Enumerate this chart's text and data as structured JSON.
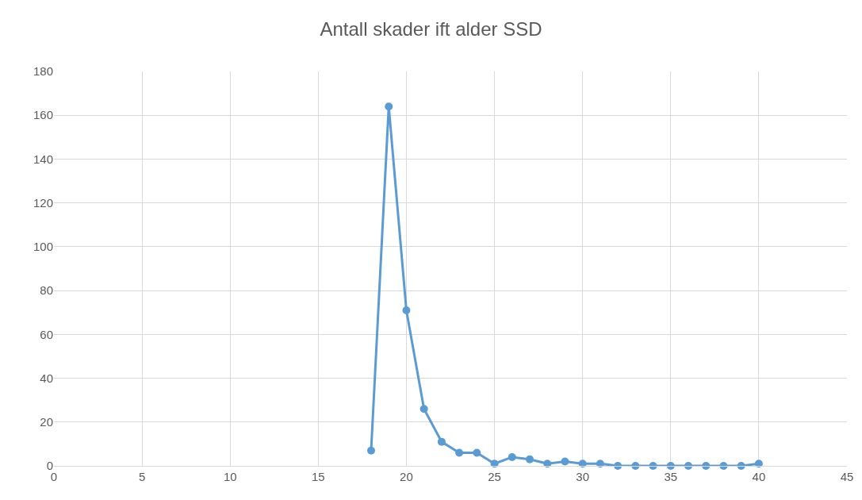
{
  "chart_data": {
    "type": "line",
    "title": "Antall skader ift alder SSD",
    "x": [
      18,
      19,
      20,
      21,
      22,
      23,
      24,
      25,
      26,
      27,
      28,
      29,
      30,
      31,
      32,
      33,
      34,
      35,
      36,
      37,
      38,
      39,
      40
    ],
    "series": [
      {
        "color": "#5b9bd5",
        "values": [
          7,
          164,
          71,
          26,
          11,
          6,
          6,
          1,
          4,
          3,
          1,
          2,
          1,
          1,
          0,
          0,
          0,
          0,
          0,
          0,
          0,
          0,
          1
        ]
      }
    ],
    "xlim": [
      0,
      45
    ],
    "xticks": [
      0,
      5,
      10,
      15,
      20,
      25,
      30,
      35,
      40,
      45
    ],
    "ylim": [
      0,
      180
    ],
    "yticks": [
      0,
      20,
      40,
      60,
      80,
      100,
      120,
      140,
      160,
      180
    ],
    "grid": true,
    "legend": false,
    "marker": "circle",
    "line_style": "solid"
  }
}
